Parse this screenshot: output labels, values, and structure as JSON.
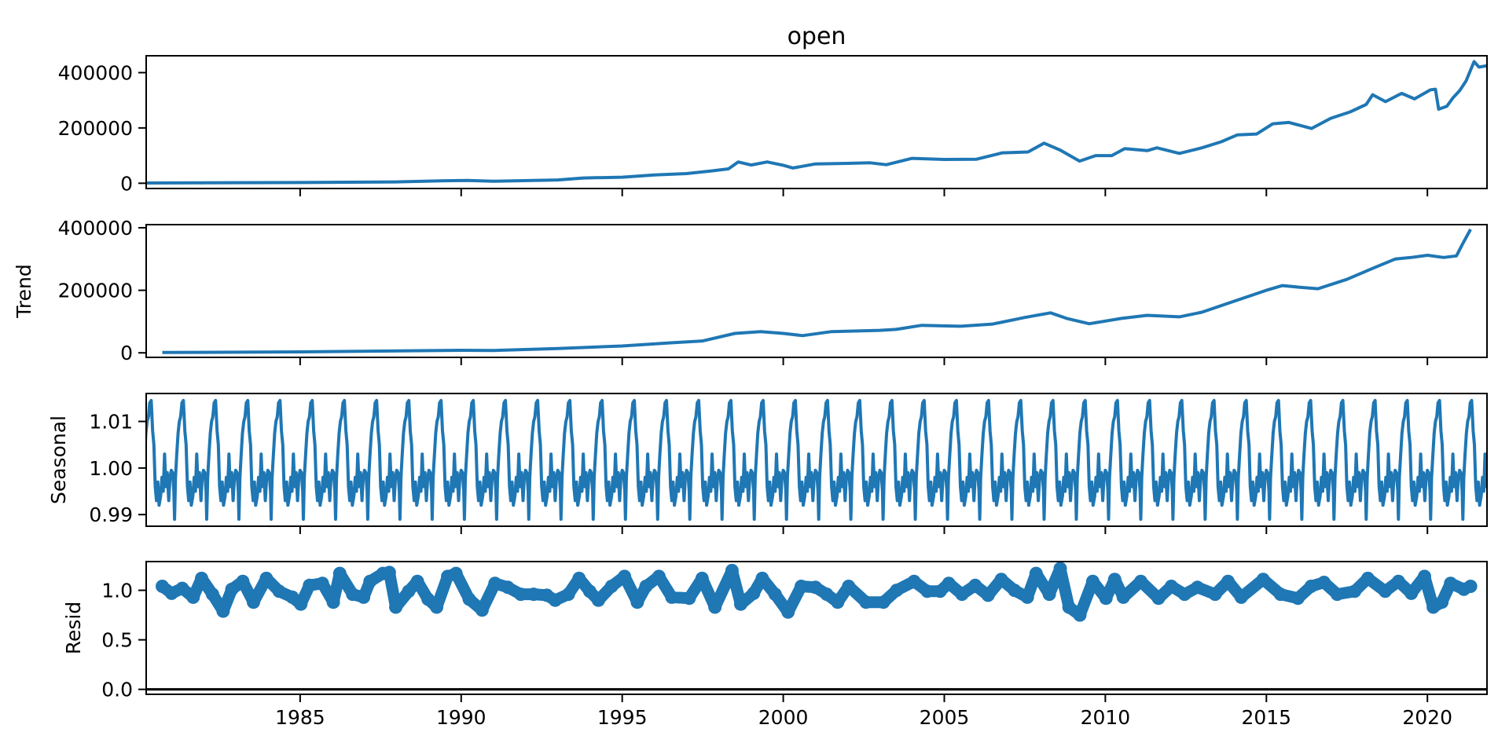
{
  "chart_data": [
    {
      "type": "line",
      "title": "open",
      "ylabel": "",
      "xlim": [
        1980.22,
        2021.85
      ],
      "ylim": [
        -19000,
        461000
      ],
      "yticks": [
        0,
        200000,
        400000
      ],
      "ytick_labels": [
        "0",
        "200000",
        "400000"
      ],
      "color": "#1f77b4",
      "points": [
        [
          1980.22,
          1000
        ],
        [
          1982,
          1500
        ],
        [
          1985,
          2500
        ],
        [
          1988,
          5000
        ],
        [
          1989.5,
          9000
        ],
        [
          1990.2,
          10000
        ],
        [
          1991,
          7000
        ],
        [
          1993,
          12000
        ],
        [
          1993.8,
          19000
        ],
        [
          1995,
          22000
        ],
        [
          1996,
          30000
        ],
        [
          1997,
          35000
        ],
        [
          1997.8,
          45000
        ],
        [
          1998.3,
          52000
        ],
        [
          1998.6,
          77000
        ],
        [
          1999,
          66000
        ],
        [
          1999.5,
          77000
        ],
        [
          2000,
          65000
        ],
        [
          2000.3,
          55000
        ],
        [
          2001,
          70000
        ],
        [
          2002,
          72000
        ],
        [
          2002.7,
          74000
        ],
        [
          2003.2,
          67000
        ],
        [
          2004,
          90000
        ],
        [
          2005,
          86000
        ],
        [
          2006,
          87000
        ],
        [
          2006.8,
          110000
        ],
        [
          2007.6,
          113000
        ],
        [
          2008.1,
          145000
        ],
        [
          2008.6,
          120000
        ],
        [
          2008.9,
          100000
        ],
        [
          2009.2,
          80000
        ],
        [
          2009.7,
          100000
        ],
        [
          2010.2,
          100000
        ],
        [
          2010.6,
          125000
        ],
        [
          2011.3,
          118000
        ],
        [
          2011.6,
          128000
        ],
        [
          2012.3,
          108000
        ],
        [
          2013,
          128000
        ],
        [
          2013.6,
          150000
        ],
        [
          2014.1,
          175000
        ],
        [
          2014.7,
          178000
        ],
        [
          2015.2,
          215000
        ],
        [
          2015.7,
          220000
        ],
        [
          2016.4,
          198000
        ],
        [
          2017,
          235000
        ],
        [
          2017.6,
          258000
        ],
        [
          2018.1,
          285000
        ],
        [
          2018.3,
          320000
        ],
        [
          2018.7,
          295000
        ],
        [
          2019.2,
          325000
        ],
        [
          2019.6,
          305000
        ],
        [
          2020.1,
          338000
        ],
        [
          2020.25,
          340000
        ],
        [
          2020.35,
          268000
        ],
        [
          2020.6,
          278000
        ],
        [
          2020.8,
          310000
        ],
        [
          2021.0,
          335000
        ],
        [
          2021.2,
          370000
        ],
        [
          2021.45,
          440000
        ],
        [
          2021.6,
          420000
        ],
        [
          2021.85,
          425000
        ]
      ]
    },
    {
      "type": "line",
      "title": "",
      "ylabel": "Trend",
      "xlim": [
        1980.22,
        2021.85
      ],
      "ylim": [
        -14500,
        410000
      ],
      "yticks": [
        0,
        200000,
        400000
      ],
      "ytick_labels": [
        "0",
        "200000",
        "400000"
      ],
      "color": "#1f77b4",
      "points": [
        [
          1980.72,
          1000
        ],
        [
          1985,
          3000
        ],
        [
          1990,
          8000
        ],
        [
          1991,
          7500
        ],
        [
          1993,
          14000
        ],
        [
          1995,
          22000
        ],
        [
          1996.5,
          32000
        ],
        [
          1997.5,
          38000
        ],
        [
          1998.5,
          62000
        ],
        [
          1999.3,
          68000
        ],
        [
          2000,
          62000
        ],
        [
          2000.6,
          55000
        ],
        [
          2001.5,
          68000
        ],
        [
          2003,
          72000
        ],
        [
          2003.5,
          75000
        ],
        [
          2004.3,
          88000
        ],
        [
          2005.5,
          85000
        ],
        [
          2006.5,
          92000
        ],
        [
          2007.5,
          113000
        ],
        [
          2008.3,
          128000
        ],
        [
          2008.8,
          110000
        ],
        [
          2009.5,
          93000
        ],
        [
          2010.5,
          110000
        ],
        [
          2011.3,
          120000
        ],
        [
          2012.3,
          115000
        ],
        [
          2013,
          130000
        ],
        [
          2014,
          165000
        ],
        [
          2015,
          200000
        ],
        [
          2015.5,
          215000
        ],
        [
          2016,
          210000
        ],
        [
          2016.6,
          205000
        ],
        [
          2017.5,
          235000
        ],
        [
          2018.3,
          270000
        ],
        [
          2019,
          300000
        ],
        [
          2019.5,
          305000
        ],
        [
          2020,
          312000
        ],
        [
          2020.5,
          305000
        ],
        [
          2020.9,
          310000
        ],
        [
          2021.1,
          350000
        ],
        [
          2021.34,
          395000
        ]
      ]
    },
    {
      "type": "line",
      "title": "",
      "ylabel": "Seasonal",
      "xlim": [
        1980.22,
        2021.85
      ],
      "ylim": [
        0.9875,
        1.016
      ],
      "yticks": [
        0.99,
        1.0,
        1.01
      ],
      "ytick_labels": [
        "0.99",
        "1.00",
        "1.01"
      ],
      "color": "#1f77b4",
      "x_range": [
        1980.22,
        2021.85
      ],
      "period_years": 1,
      "pattern_phase": [
        0.0,
        0.04,
        0.08,
        0.1,
        0.13,
        0.17,
        0.21,
        0.25,
        0.29,
        0.33,
        0.375,
        0.42,
        0.46,
        0.5,
        0.54,
        0.58,
        0.62,
        0.67,
        0.71,
        0.75,
        0.79,
        0.83,
        0.875,
        0.92,
        0.96
      ],
      "pattern_values": [
        0.9995,
        0.999,
        0.995,
        0.989,
        0.998,
        1.003,
        1.0075,
        1.01,
        1.011,
        1.014,
        1.0145,
        1.008,
        1.005,
        0.996,
        0.993,
        0.997,
        0.992,
        0.994,
        0.998,
        0.995,
        1.003,
        0.996,
        0.999,
        0.993,
        0.998
      ]
    },
    {
      "type": "scatter",
      "title": "",
      "ylabel": "Resid",
      "xlim": [
        1980.22,
        2021.85
      ],
      "ylim": [
        -0.05,
        1.29
      ],
      "yticks": [
        0.0,
        0.5,
        1.0
      ],
      "ytick_labels": [
        "0.0",
        "0.5",
        "1.0"
      ],
      "xticks": [
        1985,
        1990,
        1995,
        2000,
        2005,
        2010,
        2015,
        2020
      ],
      "xtick_labels": [
        "1985",
        "1990",
        "1995",
        "2000",
        "2005",
        "2010",
        "2015",
        "2020"
      ],
      "color": "#1f77b4",
      "reference_line": 0,
      "points": [
        [
          1980.72,
          1.04
        ],
        [
          1981.01,
          0.97
        ],
        [
          1981.34,
          1.02
        ],
        [
          1981.68,
          0.93
        ],
        [
          1981.94,
          1.12
        ],
        [
          1982.28,
          0.96
        ],
        [
          1982.61,
          0.79
        ],
        [
          1982.88,
          1.01
        ],
        [
          1983.22,
          1.09
        ],
        [
          1983.55,
          0.88
        ],
        [
          1983.95,
          1.12
        ],
        [
          1984.35,
          0.99
        ],
        [
          1984.76,
          0.93
        ],
        [
          1985.02,
          0.86
        ],
        [
          1985.29,
          1.05
        ],
        [
          1985.69,
          1.07
        ],
        [
          1986.03,
          0.88
        ],
        [
          1986.23,
          1.17
        ],
        [
          1986.63,
          0.96
        ],
        [
          1986.97,
          0.93
        ],
        [
          1987.17,
          1.09
        ],
        [
          1987.57,
          1.17
        ],
        [
          1987.77,
          1.18
        ],
        [
          1987.97,
          0.83
        ],
        [
          1988.37,
          0.99
        ],
        [
          1988.64,
          1.09
        ],
        [
          1988.97,
          0.91
        ],
        [
          1989.24,
          0.83
        ],
        [
          1989.58,
          1.14
        ],
        [
          1989.84,
          1.17
        ],
        [
          1990.25,
          0.91
        ],
        [
          1990.65,
          0.8
        ],
        [
          1991.05,
          1.07
        ],
        [
          1991.45,
          1.03
        ],
        [
          1991.85,
          0.96
        ],
        [
          1992.25,
          0.96
        ],
        [
          1992.66,
          0.95
        ],
        [
          1992.92,
          0.9
        ],
        [
          1993.33,
          0.96
        ],
        [
          1993.66,
          1.12
        ],
        [
          1993.99,
          0.99
        ],
        [
          1994.26,
          0.9
        ],
        [
          1994.67,
          1.04
        ],
        [
          1995.07,
          1.14
        ],
        [
          1995.47,
          0.88
        ],
        [
          1995.74,
          1.04
        ],
        [
          1996.14,
          1.14
        ],
        [
          1996.54,
          0.93
        ],
        [
          1997.08,
          0.92
        ],
        [
          1997.48,
          1.12
        ],
        [
          1997.88,
          0.83
        ],
        [
          1998.41,
          1.2
        ],
        [
          1998.68,
          0.86
        ],
        [
          1999.08,
          0.97
        ],
        [
          1999.35,
          1.12
        ],
        [
          1999.75,
          0.96
        ],
        [
          2000.15,
          0.78
        ],
        [
          2000.56,
          1.04
        ],
        [
          2001.0,
          1.03
        ],
        [
          2001.35,
          0.96
        ],
        [
          2001.69,
          0.88
        ],
        [
          2002.03,
          1.04
        ],
        [
          2002.57,
          0.88
        ],
        [
          2003.11,
          0.88
        ],
        [
          2003.52,
          1.0
        ],
        [
          2004.06,
          1.09
        ],
        [
          2004.47,
          0.99
        ],
        [
          2004.87,
          0.99
        ],
        [
          2005.14,
          1.07
        ],
        [
          2005.55,
          0.96
        ],
        [
          2005.96,
          1.05
        ],
        [
          2006.36,
          0.95
        ],
        [
          2006.77,
          1.11
        ],
        [
          2007.18,
          1.0
        ],
        [
          2007.58,
          0.93
        ],
        [
          2007.85,
          1.17
        ],
        [
          2008.26,
          0.96
        ],
        [
          2008.6,
          1.22
        ],
        [
          2008.87,
          0.83
        ],
        [
          2009.21,
          0.75
        ],
        [
          2009.61,
          1.09
        ],
        [
          2010.02,
          0.92
        ],
        [
          2010.29,
          1.11
        ],
        [
          2010.56,
          0.93
        ],
        [
          2011.1,
          1.09
        ],
        [
          2011.65,
          0.92
        ],
        [
          2012.05,
          1.04
        ],
        [
          2012.46,
          0.96
        ],
        [
          2012.86,
          1.03
        ],
        [
          2013.41,
          0.96
        ],
        [
          2013.81,
          1.09
        ],
        [
          2014.22,
          0.93
        ],
        [
          2014.9,
          1.11
        ],
        [
          2015.44,
          0.96
        ],
        [
          2015.98,
          0.92
        ],
        [
          2016.39,
          1.04
        ],
        [
          2016.79,
          1.08
        ],
        [
          2017.2,
          0.96
        ],
        [
          2017.74,
          0.99
        ],
        [
          2018.15,
          1.12
        ],
        [
          2018.69,
          0.99
        ],
        [
          2019.1,
          1.09
        ],
        [
          2019.5,
          0.97
        ],
        [
          2019.91,
          1.14
        ],
        [
          2020.18,
          0.83
        ],
        [
          2020.45,
          0.88
        ],
        [
          2020.72,
          1.07
        ],
        [
          2021.13,
          1.01
        ],
        [
          2021.34,
          1.04
        ]
      ]
    }
  ]
}
